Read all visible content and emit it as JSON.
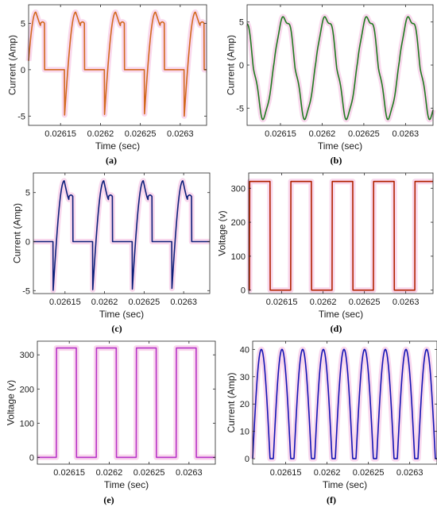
{
  "colors": {
    "a": "#d2691e",
    "b": "#1f7a1f",
    "c": "#0d1f7a",
    "d": "#b22200",
    "e": "#b833c8",
    "f": "#1414b4",
    "glow": "#f6c8e6"
  },
  "chart_data": [
    {
      "id": "a",
      "caption": "(a)",
      "type": "line",
      "waveform": "phase-current-chopped",
      "xlabel": "Time (sec)",
      "ylabel": "Current (Amp)",
      "xlim": [
        0.02611,
        0.026333
      ],
      "ylim": [
        -6,
        7
      ],
      "xticks": [
        0.02615,
        0.0262,
        0.02625,
        0.0263
      ],
      "xtick_labels": [
        "0.02615",
        "0.0262",
        "0.02625",
        "0.0263"
      ],
      "yticks": [
        -5,
        0,
        5
      ],
      "ytick_labels": [
        "-5",
        "0",
        "5"
      ],
      "period": 5e-05,
      "phase": 0.02613,
      "peak": 6.2,
      "trough": -5,
      "shoulder": 5,
      "color": "a"
    },
    {
      "id": "b",
      "caption": "(b)",
      "type": "line",
      "waveform": "distorted-sine",
      "xlabel": "Time (sec)",
      "ylabel": "Current (Amp)",
      "xlim": [
        0.02611,
        0.026333
      ],
      "ylim": [
        -7,
        7
      ],
      "xticks": [
        0.02615,
        0.0262,
        0.02625,
        0.0263
      ],
      "xtick_labels": [
        "0.02615",
        "0.0262",
        "0.02625",
        "0.0263"
      ],
      "yticks": [
        -5,
        0,
        5
      ],
      "ytick_labels": [
        "-5",
        "0",
        "5"
      ],
      "period": 5e-05,
      "phase": 0.02613,
      "peak": 6.2,
      "trough": -6.2,
      "color": "b"
    },
    {
      "id": "c",
      "caption": "(c)",
      "type": "line",
      "waveform": "phase-current-chopped",
      "xlabel": "Time (sec)",
      "ylabel": "Current (Amp)",
      "xlim": [
        0.02611,
        0.026333
      ],
      "ylim": [
        -5.3,
        7
      ],
      "xticks": [
        0.02615,
        0.0262,
        0.02625,
        0.0263
      ],
      "xtick_labels": [
        "0.02615",
        "0.0262",
        "0.02625",
        "0.0263"
      ],
      "yticks": [
        -5,
        0,
        5
      ],
      "ytick_labels": [
        "-5",
        "0",
        "5"
      ],
      "period": 5e-05,
      "phase": 0.02611,
      "peak": 6.2,
      "trough": -5,
      "shoulder": 4.6,
      "color": "c"
    },
    {
      "id": "d",
      "caption": "(d)",
      "type": "line",
      "waveform": "square",
      "xlabel": "Time (sec)",
      "ylabel": "Voltage (v)",
      "xlim": [
        0.02611,
        0.026333
      ],
      "ylim": [
        -10,
        345
      ],
      "xticks": [
        0.02615,
        0.0262,
        0.02625,
        0.0263
      ],
      "xtick_labels": [
        "0.02615",
        "0.0262",
        "0.02625",
        "0.0263"
      ],
      "yticks": [
        0,
        100,
        200,
        300
      ],
      "ytick_labels": [
        "0",
        "100",
        "200",
        "300"
      ],
      "period": 5e-05,
      "first_rise": 0.026111,
      "high_duration": 2.5e-05,
      "high": 320,
      "low": 0,
      "color": "d"
    },
    {
      "id": "e",
      "caption": "(e)",
      "type": "line",
      "waveform": "square",
      "xlabel": "Time (sec)",
      "ylabel": "Voltage (v)",
      "xlim": [
        0.02611,
        0.026333
      ],
      "ylim": [
        -20,
        340
      ],
      "xticks": [
        0.02615,
        0.0262,
        0.02625,
        0.0263
      ],
      "xtick_labels": [
        "0.02615",
        "0.0262",
        "0.02625",
        "0.0263"
      ],
      "yticks": [
        0,
        100,
        200,
        300
      ],
      "ytick_labels": [
        "0",
        "100",
        "200",
        "300"
      ],
      "period": 5e-05,
      "first_rise": 0.026134,
      "high_duration": 2.5e-05,
      "high": 320,
      "low": 0,
      "color": "e"
    },
    {
      "id": "f",
      "caption": "(f)",
      "type": "line",
      "waveform": "half-sine-pulses",
      "xlabel": "Time (sec)",
      "ylabel": "Current (Amp)",
      "xlim": [
        0.02611,
        0.026333
      ],
      "ylim": [
        -2,
        43
      ],
      "xticks": [
        0.02615,
        0.0262,
        0.02625,
        0.0263
      ],
      "xtick_labels": [
        "0.02615",
        "0.0262",
        "0.02625",
        "0.0263"
      ],
      "yticks": [
        0,
        10,
        20,
        30,
        40
      ],
      "ytick_labels": [
        "0",
        "10",
        "20",
        "30",
        "40"
      ],
      "period": 2.5e-05,
      "phase": 0.02611,
      "pulse_duration": 2.1e-05,
      "peak": 40,
      "color": "f"
    }
  ]
}
